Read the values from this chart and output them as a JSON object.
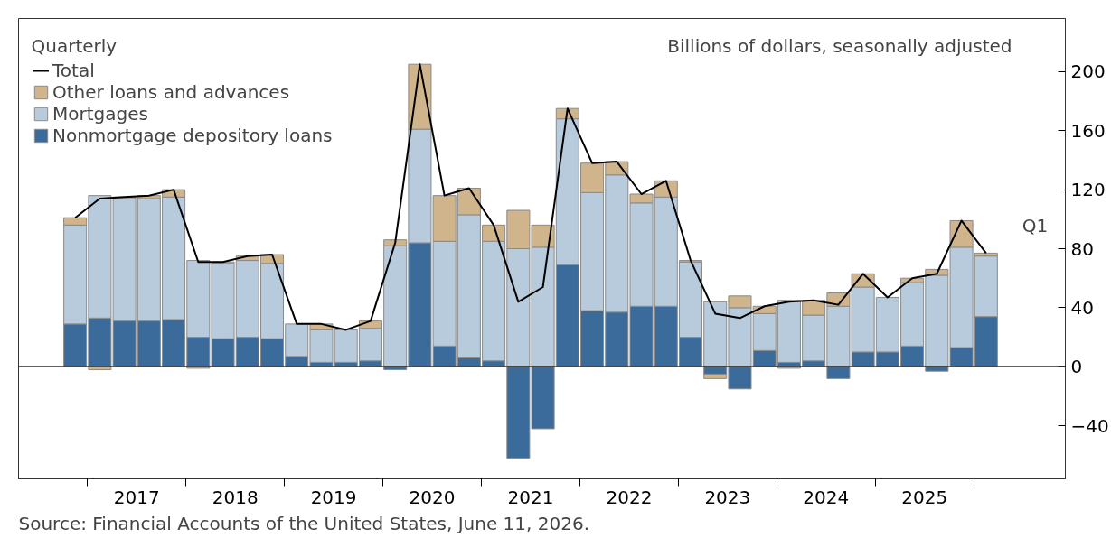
{
  "chart_data": {
    "type": "bar",
    "stacked": true,
    "x": [
      2016.875,
      2017.125,
      2017.375,
      2017.625,
      2017.875,
      2018.125,
      2018.375,
      2018.625,
      2018.875,
      2019.125,
      2019.375,
      2019.625,
      2019.875,
      2020.125,
      2020.375,
      2020.625,
      2020.875,
      2021.125,
      2021.375,
      2021.625,
      2021.875,
      2022.125,
      2022.375,
      2022.625,
      2022.875,
      2023.125,
      2023.375,
      2023.625,
      2023.875,
      2024.125,
      2024.375,
      2024.625,
      2024.875,
      2025.125,
      2025.375,
      2025.625,
      2025.875,
      2026.125
    ],
    "series": [
      {
        "name": "Nonmortgage depository loans",
        "color": "#3a6b9a",
        "values": [
          29,
          33,
          31,
          31,
          32,
          20,
          19,
          20,
          19,
          7,
          3,
          3,
          4,
          -2,
          84,
          14,
          6,
          4,
          -62,
          -42,
          69,
          38,
          37,
          41,
          41,
          20,
          -5,
          -15,
          11,
          3,
          4,
          -8,
          10,
          10,
          14,
          -3,
          13,
          34
        ]
      },
      {
        "name": "Mortgages",
        "color": "#b7cbdc",
        "values": [
          67,
          83,
          83,
          83,
          83,
          52,
          51,
          52,
          51,
          22,
          22,
          22,
          22,
          82,
          77,
          71,
          97,
          81,
          80,
          81,
          99,
          80,
          93,
          70,
          74,
          51,
          44,
          40,
          25,
          42,
          31,
          41,
          44,
          37,
          43,
          62,
          68,
          41
        ]
      },
      {
        "name": "Other loans and advances",
        "color": "#cfb48c",
        "values": [
          5,
          -2,
          1,
          2,
          5,
          -1,
          1,
          3,
          6,
          0,
          4,
          0,
          5,
          4,
          44,
          31,
          18,
          11,
          26,
          15,
          7,
          20,
          9,
          6,
          11,
          1,
          -3,
          8,
          5,
          -1,
          10,
          9,
          9,
          0,
          3,
          4,
          18,
          2
        ]
      },
      {
        "name": "Total",
        "type": "line",
        "color": "#000000",
        "values": [
          101,
          114,
          115,
          116,
          120,
          71,
          71,
          75,
          76,
          29,
          29,
          25,
          31,
          84,
          205,
          116,
          121,
          96,
          44,
          54,
          175,
          138,
          139,
          117,
          126,
          72,
          36,
          33,
          41,
          44,
          45,
          42,
          63,
          47,
          60,
          63,
          99,
          77
        ]
      }
    ],
    "xlim": [
      2016.3,
      2026.93
    ],
    "xticks": [
      {
        "value": 2017.5,
        "label": "2017"
      },
      {
        "value": 2018.5,
        "label": "2018"
      },
      {
        "value": 2019.5,
        "label": "2019"
      },
      {
        "value": 2020.5,
        "label": "2020"
      },
      {
        "value": 2021.5,
        "label": "2021"
      },
      {
        "value": 2022.5,
        "label": "2022"
      },
      {
        "value": 2023.5,
        "label": "2023"
      },
      {
        "value": 2024.5,
        "label": "2024"
      },
      {
        "value": 2025.5,
        "label": "2025"
      },
      {
        "value": 2017,
        "label": null
      },
      {
        "value": 2018,
        "label": null
      },
      {
        "value": 2019,
        "label": null
      },
      {
        "value": 2020,
        "label": null
      },
      {
        "value": 2021,
        "label": null
      },
      {
        "value": 2022,
        "label": null
      },
      {
        "value": 2023,
        "label": null
      },
      {
        "value": 2024,
        "label": null
      },
      {
        "value": 2025,
        "label": null
      },
      {
        "value": 2026,
        "label": null
      }
    ],
    "ylim": [
      -76,
      236
    ],
    "yticks": [
      -40,
      0,
      40,
      80,
      120,
      160,
      200
    ],
    "ref_lines": [
      {
        "axis": "y",
        "value": 0,
        "color": "#333333"
      }
    ],
    "legend": "top left",
    "grid": false,
    "annotations": [
      "Quarterly",
      "Billions of dollars, seasonally adjusted",
      {
        "text": "Q1",
        "x": 2026.125,
        "y": 77
      },
      "Source: Financial Accounts of the United States, June 11, 2026."
    ]
  }
}
